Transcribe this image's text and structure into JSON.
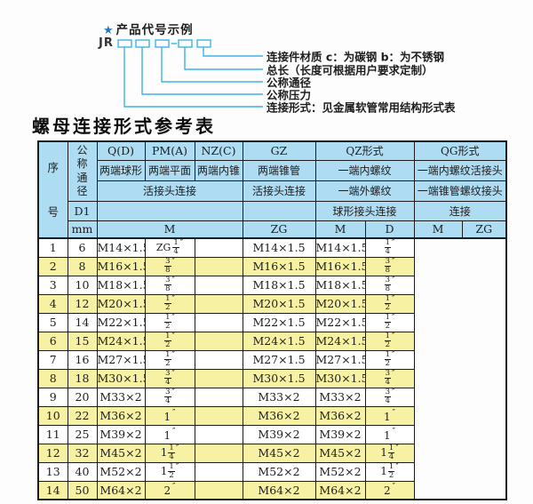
{
  "colors": {
    "header_blue": "#aedcf2",
    "row_yellow": "#f7f2a3",
    "line_cyan": "#3cb4e6",
    "star_blue": "#2377be",
    "border": "#1c1c1c"
  },
  "diagram": {
    "star": "★",
    "title": "产品代号示例",
    "code_prefix": "JR",
    "labels": [
      "连接件材质  c：为碳钢  b：为不锈钢",
      "总长（长度可根据用户要求定制）",
      "公称通径",
      "公称压力",
      "连接形式：见金属软管常用结构形式表"
    ]
  },
  "table": {
    "title": "螺母连接形式参考表",
    "header": {
      "seq": "序号",
      "dn": "公称通径",
      "d1": "D1",
      "mm": "mm",
      "q": "Q(D)",
      "pm": "PM(A)",
      "nz": "NZ(C)",
      "gz": "GZ",
      "qz": "QZ形式",
      "qg": "QG形式",
      "q_sub": "两端球形",
      "pm_sub": "两端平面",
      "nz_sub": "两端内锥",
      "gz_sub": "两端锥管",
      "qz_sub": "一端内螺纹",
      "qg_sub": "一端内螺纹活接头",
      "union_conn": "活接头连接",
      "gz_conn": "活接头连接",
      "qz_sub2": "一端外螺纹",
      "qg_sub2": "一端锥管螺纹接头",
      "qz_conn": "球形接头连接",
      "qg_conn": "连接",
      "m": "M",
      "zg": "ZG",
      "d": "D"
    },
    "rows": [
      [
        1,
        6,
        "M14×1.5",
        "ZG 1/4\"",
        "",
        "M14×1.5",
        "M14×1.5",
        "1/4\""
      ],
      [
        2,
        8,
        "M16×1.5",
        "3/8\"",
        "",
        "M16×1.5",
        "M16×1.5",
        "3/8\""
      ],
      [
        3,
        10,
        "M18×1.5",
        "3/8\"",
        "",
        "M18×1.5",
        "M18×1.5",
        "3/8\""
      ],
      [
        4,
        12,
        "M20×1.5",
        "1/2\"",
        "",
        "M20×1.5",
        "M20×1.5",
        "1/2\""
      ],
      [
        5,
        14,
        "M22×1.5",
        "1/2\"",
        "",
        "M22×1.5",
        "M22×1.5",
        "1/2\""
      ],
      [
        6,
        15,
        "M24×1.5",
        "1/2\"",
        "",
        "M24×1.5",
        "M24×1.5",
        "1/2\""
      ],
      [
        7,
        16,
        "M27×1.5",
        "1/2\"",
        "",
        "M27×1.5",
        "M27×1.5",
        "1/2\""
      ],
      [
        8,
        18,
        "M30×1.5",
        "3/4\"",
        "",
        "M30×1.5",
        "M30×1.5",
        "3/4\""
      ],
      [
        9,
        20,
        "M33×2",
        "3/4\"",
        "",
        "M33×2",
        "M33×2",
        "3/4\""
      ],
      [
        10,
        22,
        "M36×2",
        "1\"",
        "",
        "M36×2",
        "M36×2",
        "1\""
      ],
      [
        11,
        25,
        "M39×2",
        "1\"",
        "",
        "M39×2",
        "M39×2",
        "1\""
      ],
      [
        12,
        32,
        "M45×2",
        "1 1/4\"",
        "",
        "M45×2",
        "M45×2",
        "1 1/4\""
      ],
      [
        13,
        40,
        "M52×2",
        "1 1/2\"",
        "",
        "M52×2",
        "M52×2",
        "1 1/2\""
      ],
      [
        14,
        50,
        "M64×2",
        "2\"",
        "",
        "M64×2",
        "M64×2",
        "2\""
      ]
    ]
  }
}
